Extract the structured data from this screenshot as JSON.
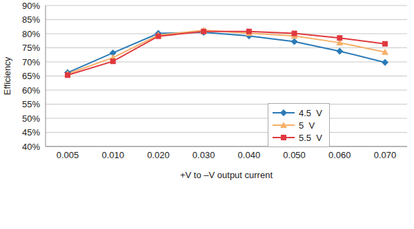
{
  "chart_data": {
    "type": "line",
    "x_label": "+V to –V output current",
    "y_label": "Efficiency",
    "categories": [
      "0.005",
      "0.010",
      "0.020",
      "0.030",
      "0.040",
      "0.050",
      "0.060",
      "0.070"
    ],
    "series": [
      {
        "name": "4.5  V",
        "color": "#2a7ab8",
        "marker": "diamond",
        "values": [
          66.2,
          73.2,
          80.1,
          80.5,
          79.2,
          77.2,
          73.8,
          69.8
        ]
      },
      {
        "name": "5  V",
        "color": "#f7b068",
        "marker": "triangle",
        "values": [
          65.8,
          71.5,
          79.5,
          81.2,
          80.2,
          79.2,
          76.8,
          73.5
        ]
      },
      {
        "name": "5.5  V",
        "color": "#e0393e",
        "marker": "square",
        "values": [
          65.3,
          70.2,
          79.1,
          80.8,
          80.8,
          80.1,
          78.5,
          76.4
        ]
      }
    ],
    "ylim": [
      40,
      90
    ],
    "yticks": [
      {
        "value": 40,
        "label": "40%"
      },
      {
        "value": 45,
        "label": "45%"
      },
      {
        "value": 50,
        "label": "50%"
      },
      {
        "value": 55,
        "label": "55%"
      },
      {
        "value": 60,
        "label": "60%"
      },
      {
        "value": 65,
        "label": "65%"
      },
      {
        "value": 70,
        "label": "70%"
      },
      {
        "value": 75,
        "label": "75%"
      },
      {
        "value": 80,
        "label": "80%"
      },
      {
        "value": 85,
        "label": "85%"
      },
      {
        "value": 90,
        "label": "90%"
      }
    ],
    "grid": true,
    "legend": "right"
  }
}
